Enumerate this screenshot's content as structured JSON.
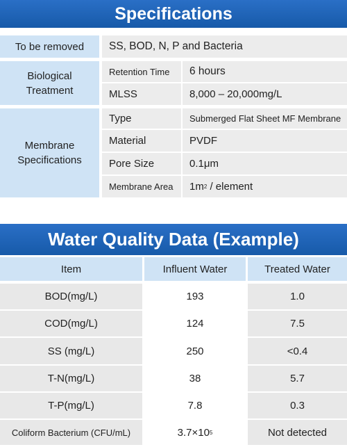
{
  "specifications": {
    "title": "Specifications",
    "to_be_removed": {
      "label": "To be removed",
      "value": "SS, BOD, N, P and Bacteria"
    },
    "biological": {
      "label": "Biological Treatment",
      "rows": [
        {
          "key": "Retention Time",
          "value": "6 hours"
        },
        {
          "key": "MLSS",
          "value": "8,000 – 20,000mg/L"
        }
      ]
    },
    "membrane": {
      "label": "Membrane Specifications",
      "rows": [
        {
          "key": "Type",
          "value": "Submerged Flat Sheet MF Membrane"
        },
        {
          "key": "Material",
          "value": "PVDF"
        },
        {
          "key": "Pore Size",
          "value": "0.1μm"
        },
        {
          "key": "Membrane Area",
          "value_prefix": "1m",
          "value_sup": "2",
          "value_suffix": "/ element"
        }
      ]
    }
  },
  "water_quality": {
    "title": "Water Quality Data (Example)",
    "headers": [
      "Item",
      "Influent Water",
      "Treated Water"
    ],
    "rows": [
      {
        "item": "BOD(mg/L)",
        "influent": "193",
        "treated": "1.0"
      },
      {
        "item": "COD(mg/L)",
        "influent": "124",
        "treated": "7.5"
      },
      {
        "item": "SS (mg/L)",
        "influent": "250",
        "treated": "<0.4"
      },
      {
        "item": "T-N(mg/L)",
        "influent": "38",
        "treated": "5.7"
      },
      {
        "item": "T-P(mg/L)",
        "influent": "7.8",
        "treated": "0.3"
      },
      {
        "item": "Coliform Bacterium (CFU/mL)",
        "influent_base": "3.7×10",
        "influent_sup": "5",
        "treated": "Not detected"
      }
    ]
  }
}
